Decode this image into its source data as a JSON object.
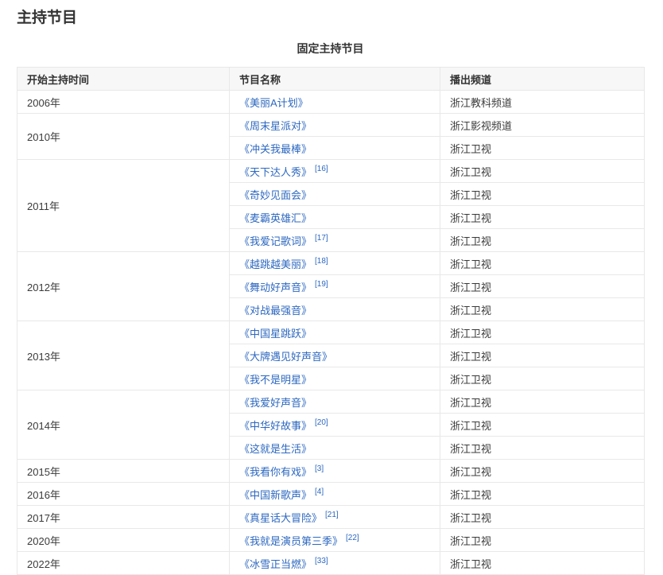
{
  "page": {
    "title": "主持节目"
  },
  "theme": {
    "link_color": "#2d68c0",
    "border_color": "#e8e8e8",
    "header_bg": "#f7f7f7",
    "text_color": "#3b3b3b"
  },
  "table": {
    "caption": "固定主持节目",
    "headers": [
      "开始主持时间",
      "节目名称",
      "播出频道"
    ],
    "groups": [
      {
        "year": "2006年",
        "items": [
          {
            "title": "《美丽A计划》",
            "ref": "",
            "channel": "浙江教科频道"
          }
        ]
      },
      {
        "year": "2010年",
        "items": [
          {
            "title": "《周末星派对》",
            "ref": "",
            "channel": "浙江影视频道"
          },
          {
            "title": "《冲关我最棒》",
            "ref": "",
            "channel": "浙江卫视"
          }
        ]
      },
      {
        "year": "2011年",
        "items": [
          {
            "title": "《天下达人秀》",
            "ref": "[16]",
            "channel": "浙江卫视"
          },
          {
            "title": "《奇妙见面会》",
            "ref": "",
            "channel": "浙江卫视"
          },
          {
            "title": "《麦霸英雄汇》",
            "ref": "",
            "channel": "浙江卫视"
          },
          {
            "title": "《我爱记歌词》",
            "ref": "[17]",
            "channel": "浙江卫视"
          }
        ]
      },
      {
        "year": "2012年",
        "items": [
          {
            "title": "《越跳越美丽》",
            "ref": "[18]",
            "channel": "浙江卫视"
          },
          {
            "title": "《舞动好声音》",
            "ref": "[19]",
            "channel": "浙江卫视"
          },
          {
            "title": "《对战最强音》",
            "ref": "",
            "channel": "浙江卫视"
          }
        ]
      },
      {
        "year": "2013年",
        "items": [
          {
            "title": "《中国星跳跃》",
            "ref": "",
            "channel": "浙江卫视"
          },
          {
            "title": "《大牌遇见好声音》",
            "ref": "",
            "channel": "浙江卫视"
          },
          {
            "title": "《我不是明星》",
            "ref": "",
            "channel": "浙江卫视"
          }
        ]
      },
      {
        "year": "2014年",
        "items": [
          {
            "title": "《我爱好声音》",
            "ref": "",
            "channel": "浙江卫视"
          },
          {
            "title": "《中华好故事》",
            "ref": "[20]",
            "channel": "浙江卫视"
          },
          {
            "title": "《这就是生活》",
            "ref": "",
            "channel": "浙江卫视"
          }
        ]
      },
      {
        "year": "2015年",
        "items": [
          {
            "title": "《我看你有戏》",
            "ref": "[3]",
            "channel": "浙江卫视"
          }
        ]
      },
      {
        "year": "2016年",
        "items": [
          {
            "title": "《中国新歌声》",
            "ref": "[4]",
            "channel": "浙江卫视"
          }
        ]
      },
      {
        "year": "2017年",
        "items": [
          {
            "title": "《真星话大冒险》",
            "ref": "[21]",
            "channel": "浙江卫视"
          }
        ]
      },
      {
        "year": "2020年",
        "items": [
          {
            "title": "《我就是演员第三季》",
            "ref": "[22]",
            "channel": "浙江卫视"
          }
        ]
      },
      {
        "year": "2022年",
        "items": [
          {
            "title": "《冰雪正当燃》",
            "ref": "[33]",
            "channel": "浙江卫视"
          }
        ]
      }
    ]
  }
}
